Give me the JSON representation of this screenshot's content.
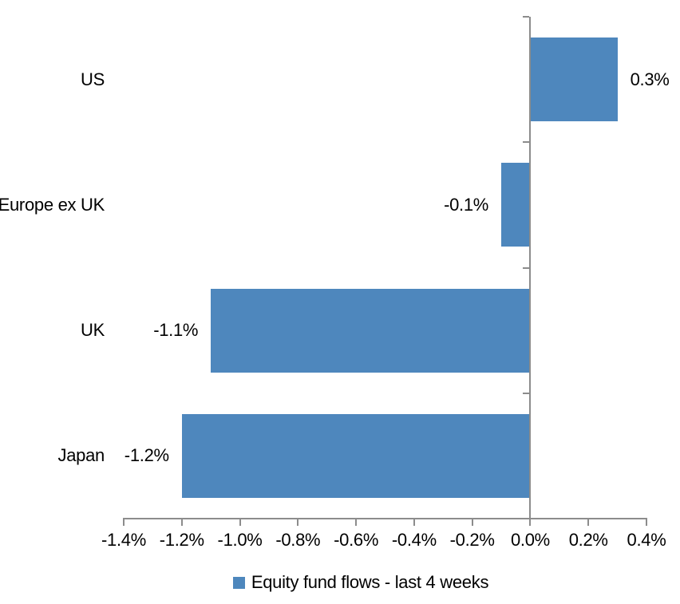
{
  "chart_data": {
    "type": "bar",
    "orientation": "horizontal",
    "title": "",
    "xlabel": "",
    "ylabel": "",
    "categories": [
      "US",
      "Europe ex UK",
      "UK",
      "Japan"
    ],
    "values": [
      0.3,
      -0.1,
      -1.1,
      -1.2
    ],
    "value_labels": [
      "0.3%",
      "-0.1%",
      "-1.1%",
      "-1.2%"
    ],
    "series_name": "Equity fund flows - last 4 weeks",
    "xlim": [
      -1.4,
      0.4
    ],
    "x_ticks": [
      -1.4,
      -1.2,
      -1.0,
      -0.8,
      -0.6,
      -0.4,
      -0.2,
      0.0,
      0.2,
      0.4
    ],
    "x_tick_labels": [
      "-1.4%",
      "-1.2%",
      "-1.0%",
      "-0.8%",
      "-0.6%",
      "-0.4%",
      "-0.2%",
      "0.0%",
      "0.2%",
      "0.4%"
    ],
    "grid": false,
    "legend_position": "bottom",
    "bar_color": "#4E87BD",
    "axis_color": "#8C8C8C",
    "text_color": "#000000",
    "background_color": "#FFFFFF"
  }
}
